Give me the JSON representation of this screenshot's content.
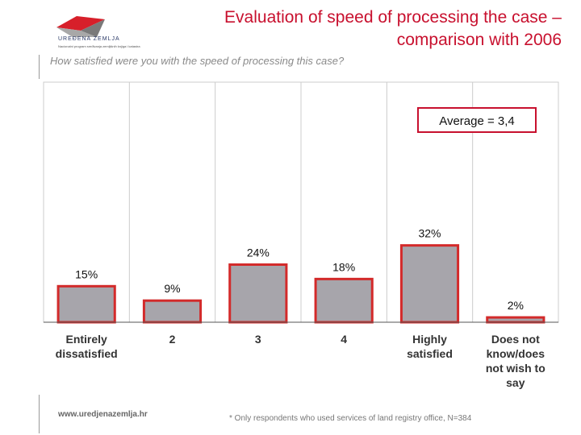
{
  "header": {
    "title_line1": "Evaluation of speed of processing the case –",
    "title_line2": "comparison with 2006",
    "subtitle": "How satisfied were you with the speed of processing this case?",
    "logo_name": "UREĐENA ZEMLJA",
    "logo_subtitle": "Nacionalni program sređivanja zemljišnih knjiga i katastra"
  },
  "footer": {
    "url": "www.uredjenazemlja.hr",
    "note": "* Only respondents who used services of land registry office, N=384"
  },
  "colors": {
    "accent": "#c8102e",
    "bar_fill": "#a7a5ab",
    "bar_border": "#d32a2a",
    "grid": "#cccccc"
  },
  "chart_data": {
    "type": "bar",
    "title": "",
    "categories": [
      [
        "Entirely",
        "dissatisfied"
      ],
      [
        "2"
      ],
      [
        "3"
      ],
      [
        "4"
      ],
      [
        "Highly",
        "satisfied"
      ],
      [
        "Does not",
        "know/does",
        "not wish to",
        "say"
      ]
    ],
    "values": [
      15,
      9,
      24,
      18,
      32,
      2
    ],
    "value_labels": [
      "15%",
      "9%",
      "24%",
      "18%",
      "32%",
      "2%"
    ],
    "ylim": [
      0,
      100
    ],
    "grid": "vertical",
    "annotation": "Average = 3,4"
  }
}
